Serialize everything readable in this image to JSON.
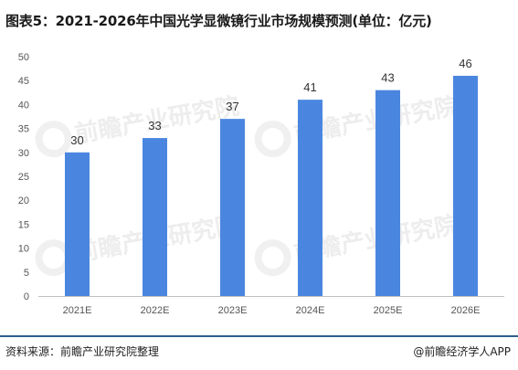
{
  "header": {
    "title": "图表5：2021-2026年中国光学显微镜行业市场规模预测(单位：亿元)"
  },
  "footer": {
    "source": "资料来源：前瞻产业研究院整理",
    "brand_at": "@",
    "brand": "前瞻经济学人APP"
  },
  "watermark": {
    "text": "前瞻产业研究院"
  },
  "colors": {
    "bar": "#4a86e0",
    "axis": "#bfbfbf",
    "divider": "#2e5f8f"
  },
  "chart_data": {
    "type": "bar",
    "categories": [
      "2021E",
      "2022E",
      "2023E",
      "2024E",
      "2025E",
      "2026E"
    ],
    "values": [
      30,
      33,
      37,
      41,
      43,
      46
    ],
    "value_labels": [
      "30",
      "33",
      "37",
      "41",
      "43",
      "46"
    ],
    "y_ticks": [
      "0",
      "5",
      "10",
      "15",
      "20",
      "25",
      "30",
      "35",
      "40",
      "45",
      "50"
    ],
    "ylim": [
      0,
      50
    ],
    "grid": false,
    "legend": "none"
  }
}
